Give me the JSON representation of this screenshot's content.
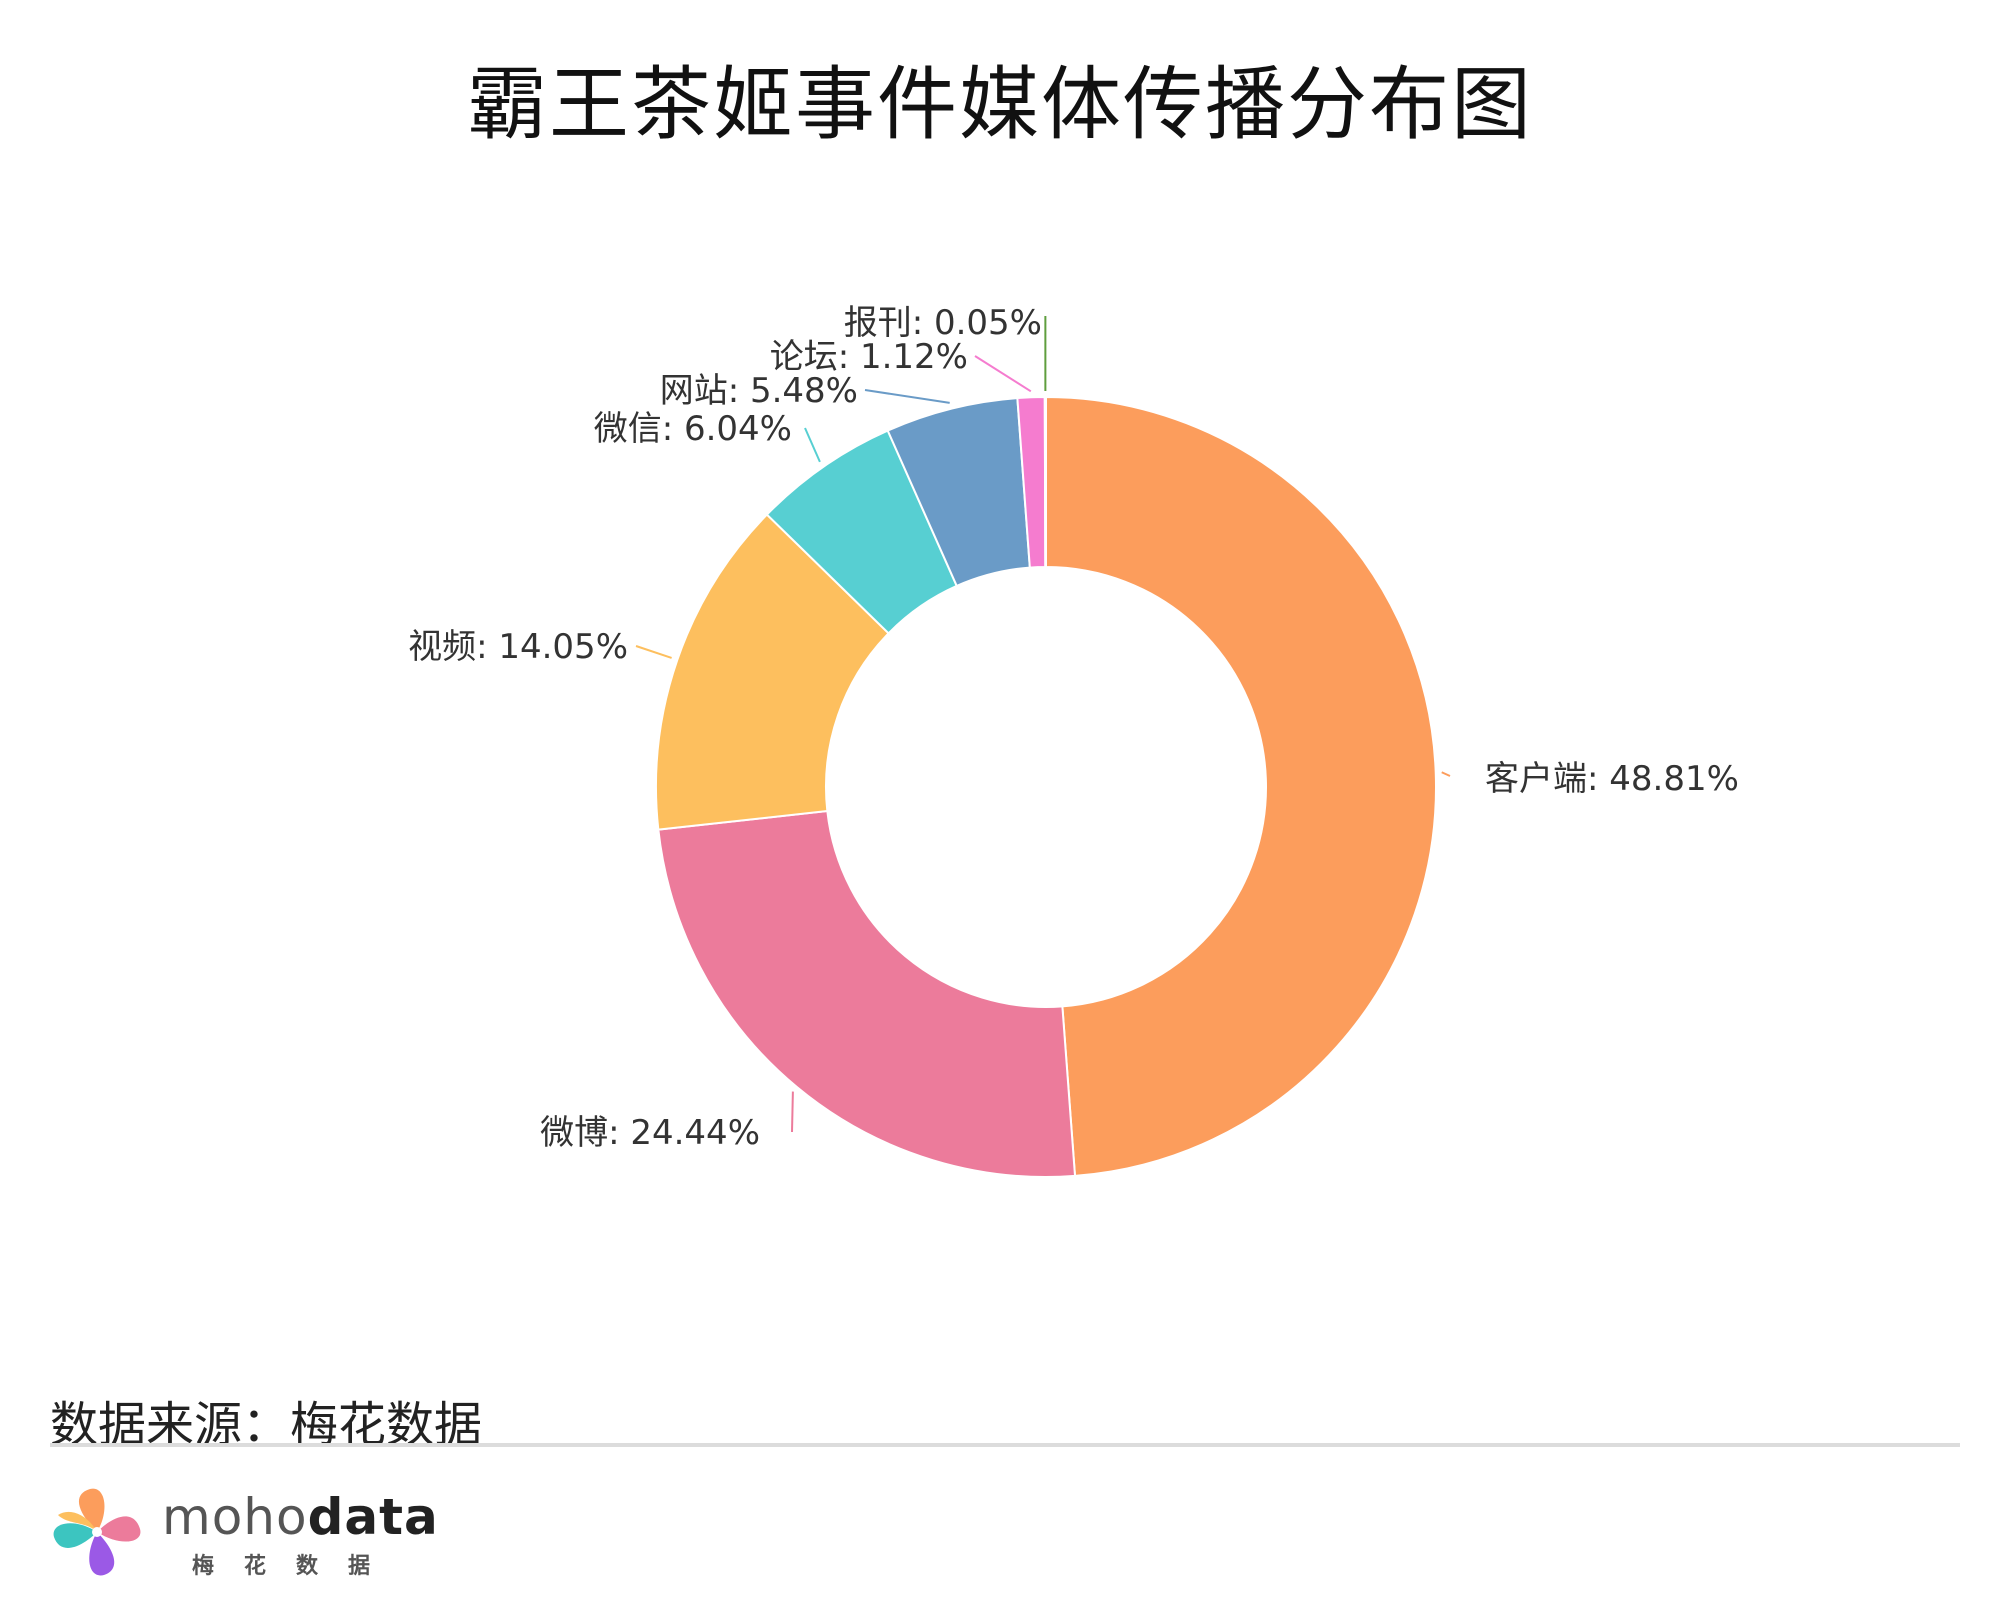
{
  "chart_data": {
    "type": "pie",
    "title": "霸王茶姬事件媒体传播分布图",
    "categories": [
      "客户端",
      "微博",
      "视频",
      "微信",
      "网站",
      "论坛",
      "报刊"
    ],
    "values": [
      48.81,
      24.44,
      14.05,
      6.04,
      5.48,
      1.12,
      0.05
    ],
    "labels": [
      "客户端: 48.81%",
      "微博: 24.44%",
      "视频: 14.05%",
      "微信: 6.04%",
      "网站: 5.48%",
      "论坛: 1.12%",
      "报刊: 0.05%"
    ],
    "colors": [
      "#fc9d5c",
      "#ec7b9b",
      "#fdbf5e",
      "#57cfd2",
      "#6a9bc7",
      "#f57ccf",
      "#5f9e3e"
    ],
    "hole": "donut",
    "legend": "none",
    "grid": false
  },
  "footer": {
    "source": "数据来源：梅花数据",
    "brand_light": "moho",
    "brand_bold": "data",
    "brand_sub": "梅花数据"
  },
  "icons": {
    "brand_logo": "pinwheel-logo-icon"
  }
}
